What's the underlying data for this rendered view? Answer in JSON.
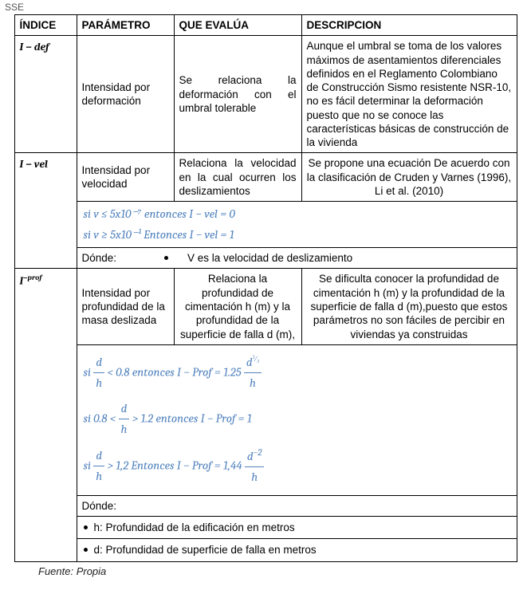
{
  "sse": "SSE",
  "headers": {
    "indice": "ÍNDICE",
    "parametro": "PARÁMETRO",
    "evalua": "QUE EVALÚA",
    "descripcion": "DESCRIPCION"
  },
  "rows": {
    "def": {
      "idx": "I − def",
      "param": "Intensidad por deformación",
      "evalua": "Se relaciona la deformación con el umbral tolerable",
      "desc": "Aunque el umbral se toma de los valores máximos de asentamientos diferenciales definidos en el Reglamento Colombiano de Construcción Sismo resistente NSR-10, no es fácil determinar la deformación puesto que no se conoce las características básicas de construcción de la vivienda"
    },
    "vel": {
      "idx": "I − vel",
      "param": "Intensidad por velocidad",
      "evalua": "Relaciona la velocidad en la cual ocurren los deslizamientos",
      "desc": "Se propone una ecuación De acuerdo con la clasificación de Cruden y Varnes (1996), Li et al. (2010)",
      "f1": "si v  ≤  5x10⁻⁷  entonces I − vel =  0",
      "f2": "si  v  ≥ 5x10⁻¹  Entonces  I − vel =  1",
      "donde": "Dónde:",
      "dondev": "V es la velocidad de deslizamiento"
    },
    "prof": {
      "idx_main": "I",
      "idx_sup": "−prof",
      "param": "Intensidad por profundidad de la masa deslizada",
      "evalua": "Relaciona la profundidad de cimentación h (m) y la profundidad de la superficie de falla d (m),",
      "desc": "Se dificulta conocer la profundidad de cimentación h (m) y la profundidad de la superficie de falla d (m),puesto que estos parámetros no son fáciles de  percibir en viviendas ya construidas",
      "f1a": "si ",
      "f1b": " < 0.8  entonces I − Prof =  1.25",
      "f2a": "si 0.8 < ",
      "f2b": " > 1.2  entonces I − Prof = 1",
      "f3a": "si ",
      "f3b": " > 1,2 Entonces  I − Prof =  1,44",
      "frac_d": "d",
      "frac_h": "h",
      "exp1": "1⁄3",
      "exp3": "−2",
      "donde": "Dónde:",
      "b1": "h:  Profundidad de la edificación en metros",
      "b2": "d: Profundidad de superficie de falla en metros"
    }
  },
  "fuente": "Fuente: Propia"
}
